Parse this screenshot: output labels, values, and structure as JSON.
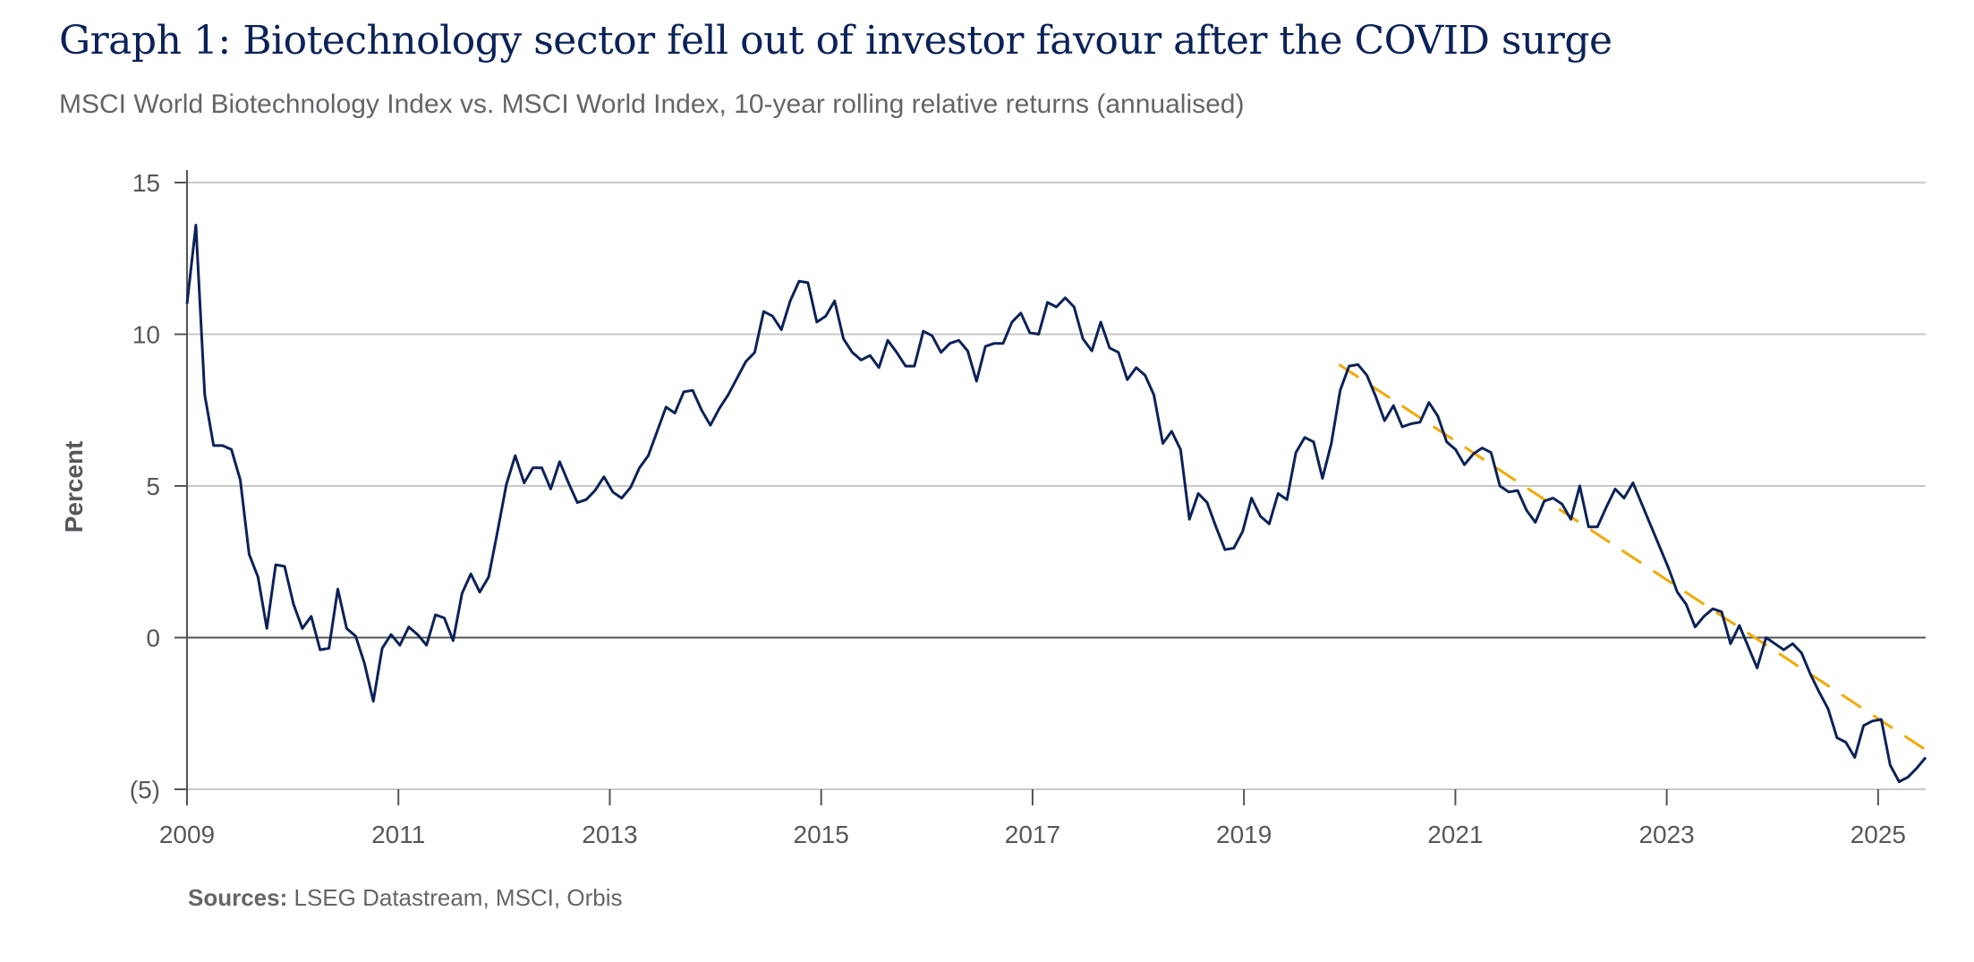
{
  "title": "Graph 1: Biotechnology sector fell out of investor favour after the COVID surge",
  "subtitle": "MSCI World Biotechnology Index vs. MSCI World Index, 10-year rolling relative returns (annualised)",
  "sources": {
    "label": "Sources:",
    "text": " LSEG Datastream, MSCI, Orbis"
  },
  "chart_data": {
    "type": "line",
    "title": "Graph 1: Biotechnology sector fell out of investor favour after the COVID surge",
    "ylabel": "Percent",
    "xlabel": "",
    "ylim": [
      -5,
      15
    ],
    "xlim": [
      2009,
      2025.45
    ],
    "yticks": [
      15,
      10,
      5,
      0,
      -5
    ],
    "ytick_labels": [
      "15",
      "10",
      "5",
      "0",
      "(5)"
    ],
    "xticks": [
      2009,
      2011,
      2013,
      2015,
      2017,
      2019,
      2021,
      2023,
      2025
    ],
    "xtick_labels": [
      "2009",
      "2011",
      "2013",
      "2015",
      "2017",
      "2019",
      "2021",
      "2023",
      "2025"
    ],
    "grid": "horizontal",
    "colors": {
      "series": "#0b2259",
      "trend": "#f5a800",
      "grid": "#c8c8c8",
      "axis": "#555555"
    },
    "series": [
      {
        "x_start": "2009-01",
        "x_end": "2025-06",
        "frequency": "monthly",
        "values": [
          11.0,
          13.6,
          8.0,
          6.33,
          6.33,
          6.2,
          5.2,
          2.75,
          2.0,
          0.3,
          2.4,
          2.35,
          1.1,
          0.3,
          0.7,
          -0.4,
          -0.35,
          1.6,
          0.3,
          0.05,
          -0.85,
          -2.1,
          -0.35,
          0.1,
          -0.25,
          0.35,
          0.1,
          -0.25,
          0.75,
          0.65,
          -0.1,
          1.45,
          2.1,
          1.5,
          2.0,
          3.5,
          5.05,
          6.0,
          5.1,
          5.6,
          5.6,
          4.9,
          5.8,
          5.1,
          4.45,
          4.55,
          4.85,
          5.3,
          4.8,
          4.6,
          4.95,
          5.6,
          6.0,
          6.8,
          7.6,
          7.4,
          8.1,
          8.15,
          7.5,
          7.0,
          7.55,
          8.0,
          8.55,
          9.1,
          9.4,
          10.75,
          10.6,
          10.15,
          11.1,
          11.75,
          11.7,
          10.4,
          10.6,
          11.1,
          9.85,
          9.4,
          9.15,
          9.3,
          8.9,
          9.8,
          9.4,
          8.95,
          8.95,
          10.1,
          9.95,
          9.4,
          9.7,
          9.8,
          9.45,
          8.45,
          9.6,
          9.7,
          9.7,
          10.4,
          10.7,
          10.05,
          10.0,
          11.05,
          10.9,
          11.2,
          10.9,
          9.85,
          9.45,
          10.4,
          9.55,
          9.4,
          8.5,
          8.9,
          8.65,
          8.0,
          6.4,
          6.8,
          6.2,
          3.9,
          4.75,
          4.45,
          3.65,
          2.9,
          2.95,
          3.5,
          4.6,
          4.0,
          3.75,
          4.75,
          4.55,
          6.1,
          6.6,
          6.45,
          5.25,
          6.4,
          8.15,
          8.95,
          9.0,
          8.65,
          7.95,
          7.15,
          7.65,
          6.95,
          7.05,
          7.1,
          7.75,
          7.3,
          6.45,
          6.2,
          5.7,
          6.05,
          6.25,
          6.1,
          5.0,
          4.8,
          4.85,
          4.2,
          3.8,
          4.5,
          4.6,
          4.4,
          3.9,
          5.0,
          3.65,
          3.65,
          4.3,
          4.9,
          4.6,
          5.1,
          4.4,
          3.7,
          3.0,
          2.3,
          1.5,
          1.1,
          0.35,
          0.7,
          0.95,
          0.85,
          -0.2,
          0.4,
          -0.3,
          -1.0,
          0.0,
          -0.2,
          -0.4,
          -0.2,
          -0.5,
          -1.2,
          -1.8,
          -2.35,
          -3.3,
          -3.45,
          -3.95,
          -2.9,
          -2.75,
          -2.7,
          -4.2,
          -4.75,
          -4.6,
          -4.3,
          -3.95
        ]
      }
    ],
    "trendline": {
      "style": "dashed",
      "from": {
        "x": 2019.9,
        "y": 9.0
      },
      "to": {
        "x": 2025.45,
        "y": -3.7
      }
    }
  }
}
